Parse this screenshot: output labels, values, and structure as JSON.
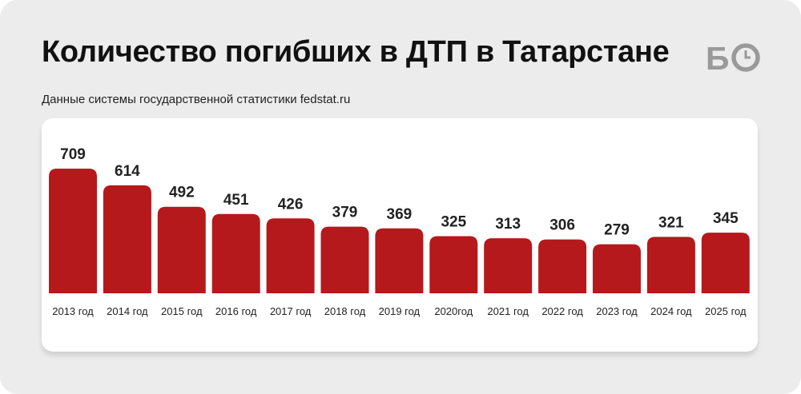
{
  "header": {
    "title": "Количество погибших в ДТП в Татарстане",
    "subtitle": "Данные системы государственной статистики fedstat.ru"
  },
  "logo": {
    "name": "bo-logo",
    "text": "БО"
  },
  "colors": {
    "bar": "#b5191c",
    "background": "#ececec",
    "card": "#ffffff",
    "text": "#222222"
  },
  "chart_data": {
    "type": "bar",
    "title": "Количество погибших в ДТП в Татарстане",
    "subtitle": "Данные системы государственной статистики fedstat.ru",
    "xlabel": "",
    "ylabel": "",
    "categories": [
      "2013 год",
      "2014 год",
      "2015 год",
      "2016 год",
      "2017 год",
      "2018 год",
      "2019 год",
      "2020год",
      "2021 год",
      "2022 год",
      "2023 год",
      "2024 год",
      "2025 год"
    ],
    "values": [
      709,
      614,
      492,
      451,
      426,
      379,
      369,
      325,
      313,
      306,
      279,
      321,
      345
    ],
    "ylim": [
      0,
      709
    ],
    "grid": false,
    "legend": "none",
    "data_labels": true
  }
}
